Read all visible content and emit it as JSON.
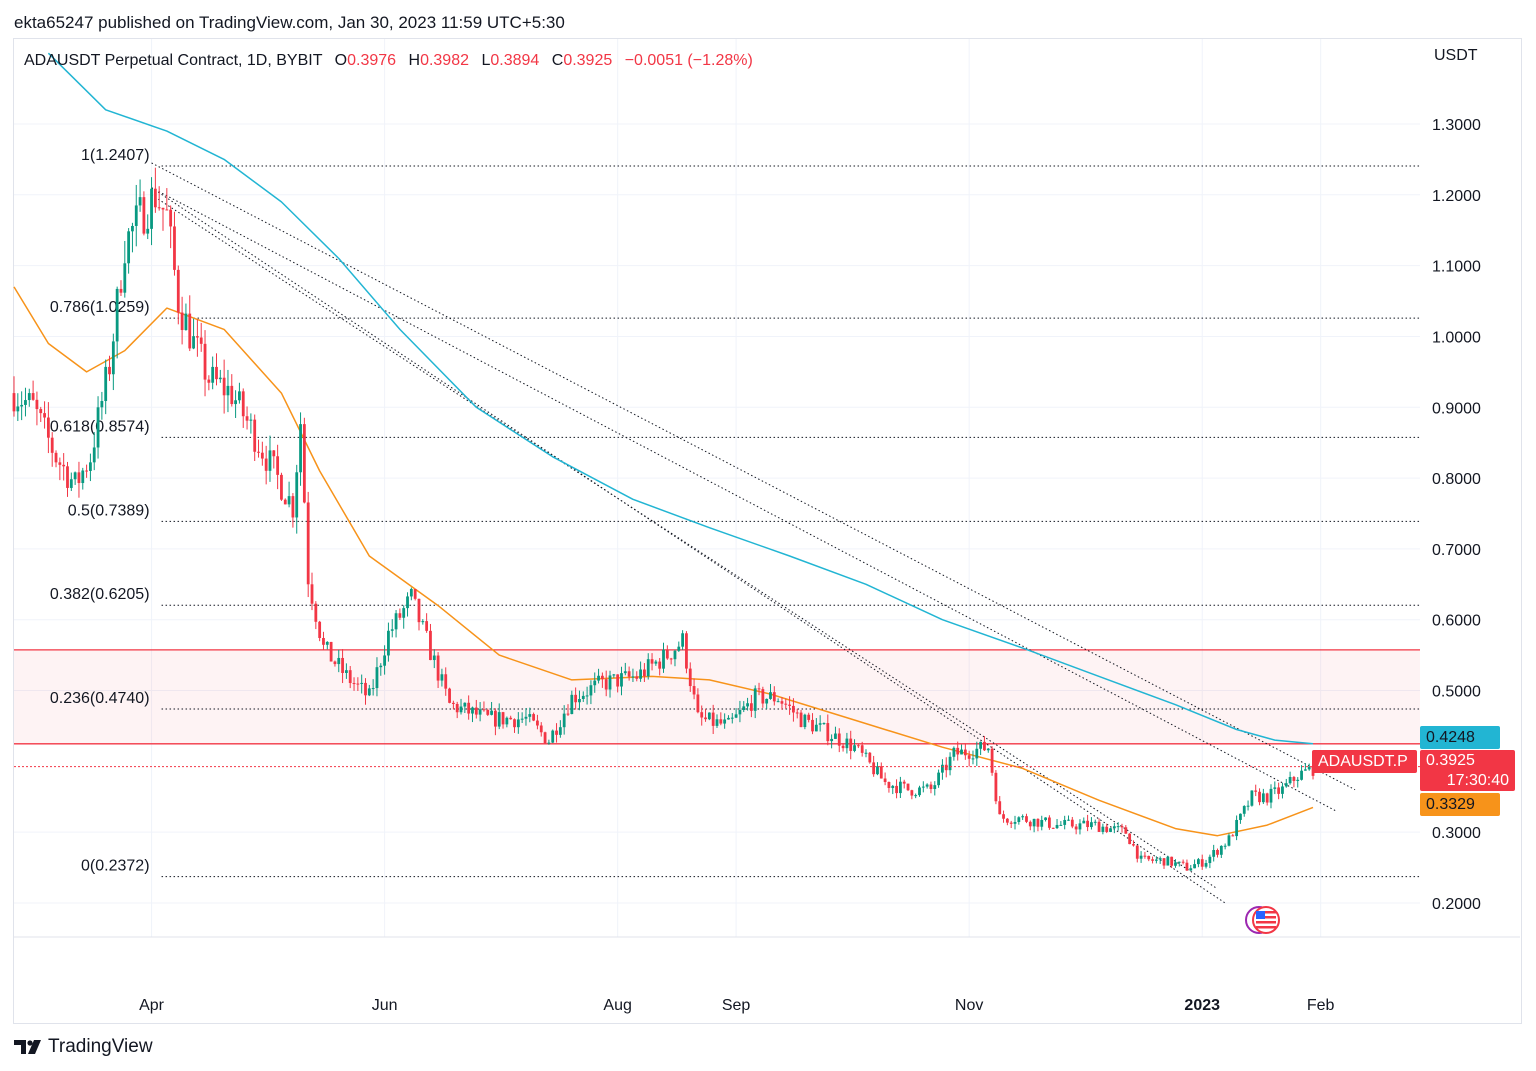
{
  "publisher": "ekta65247 published on TradingView.com, Jan 30, 2023 11:59 UTC+5:30",
  "legend": {
    "symbol": "ADAUSDT Perpetual Contract, 1D, BYBIT",
    "o_label": "O",
    "o": "0.3976",
    "h_label": "H",
    "h": "0.3982",
    "l_label": "L",
    "l": "0.3894",
    "c_label": "C",
    "c": "0.3925",
    "change": "−0.0051 (−1.28%)"
  },
  "footer": {
    "brand": "TradingView"
  },
  "price_tags": {
    "ma_long": {
      "value": "0.4248",
      "color": "#22b5d3"
    },
    "last": {
      "symbol": "ADAUSDT.P",
      "value": "0.3925",
      "countdown": "17:30:40",
      "color": "#f23645"
    },
    "ma_short": {
      "value": "0.3329",
      "color": "#f7931a"
    }
  },
  "chart_data": {
    "type": "candlestick",
    "unit": "USDT",
    "ylim": [
      0.152,
      1.42
    ],
    "y_ticks": [
      "1.3000",
      "1.2000",
      "1.1000",
      "1.0000",
      "0.9000",
      "0.8000",
      "0.7000",
      "0.6000",
      "0.5000",
      "0.3000",
      "0.2000"
    ],
    "y_tick_values": [
      1.3,
      1.2,
      1.1,
      1.0,
      0.9,
      0.8,
      0.7,
      0.6,
      0.5,
      0.3,
      0.2
    ],
    "x_range": [
      "2022-02-24",
      "2023-02-27"
    ],
    "x_ticks": [
      {
        "label": "Apr",
        "date": "2022-04-01",
        "bold": false
      },
      {
        "label": "Jun",
        "date": "2022-06-01",
        "bold": false
      },
      {
        "label": "Aug",
        "date": "2022-08-01",
        "bold": false
      },
      {
        "label": "Sep",
        "date": "2022-09-01",
        "bold": false
      },
      {
        "label": "Nov",
        "date": "2022-11-01",
        "bold": false
      },
      {
        "label": "2023",
        "date": "2023-01-01",
        "bold": true
      },
      {
        "label": "Feb",
        "date": "2023-02-01",
        "bold": false
      }
    ],
    "up_color": "#089981",
    "down_color": "#f23645",
    "close_path": [
      [
        "2022-02-24",
        0.92
      ],
      [
        "2022-03-01",
        0.9
      ],
      [
        "2022-03-07",
        0.83
      ],
      [
        "2022-03-12",
        0.79
      ],
      [
        "2022-03-16",
        0.83
      ],
      [
        "2022-03-21",
        0.96
      ],
      [
        "2022-03-25",
        1.13
      ],
      [
        "2022-03-29",
        1.17
      ],
      [
        "2022-04-02",
        1.2
      ],
      [
        "2022-04-05",
        1.17
      ],
      [
        "2022-04-08",
        1.05
      ],
      [
        "2022-04-12",
        0.99
      ],
      [
        "2022-04-16",
        0.94
      ],
      [
        "2022-04-22",
        0.92
      ],
      [
        "2022-04-28",
        0.86
      ],
      [
        "2022-05-04",
        0.8
      ],
      [
        "2022-05-08",
        0.76
      ],
      [
        "2022-05-10",
        0.88
      ],
      [
        "2022-05-12",
        0.66
      ],
      [
        "2022-05-16",
        0.56
      ],
      [
        "2022-05-22",
        0.52
      ],
      [
        "2022-05-28",
        0.49
      ],
      [
        "2022-06-02",
        0.58
      ],
      [
        "2022-06-08",
        0.63
      ],
      [
        "2022-06-12",
        0.57
      ],
      [
        "2022-06-18",
        0.48
      ],
      [
        "2022-06-28",
        0.46
      ],
      [
        "2022-07-08",
        0.46
      ],
      [
        "2022-07-14",
        0.43
      ],
      [
        "2022-07-20",
        0.49
      ],
      [
        "2022-07-28",
        0.51
      ],
      [
        "2022-08-06",
        0.52
      ],
      [
        "2022-08-14",
        0.55
      ],
      [
        "2022-08-18",
        0.57
      ],
      [
        "2022-08-22",
        0.46
      ],
      [
        "2022-08-30",
        0.45
      ],
      [
        "2022-09-06",
        0.49
      ],
      [
        "2022-09-12",
        0.49
      ],
      [
        "2022-09-18",
        0.46
      ],
      [
        "2022-09-25",
        0.44
      ],
      [
        "2022-10-02",
        0.42
      ],
      [
        "2022-10-10",
        0.37
      ],
      [
        "2022-10-16",
        0.36
      ],
      [
        "2022-10-22",
        0.36
      ],
      [
        "2022-10-28",
        0.41
      ],
      [
        "2022-11-06",
        0.42
      ],
      [
        "2022-11-09",
        0.32
      ],
      [
        "2022-11-14",
        0.32
      ],
      [
        "2022-11-24",
        0.31
      ],
      [
        "2022-12-04",
        0.31
      ],
      [
        "2022-12-12",
        0.3
      ],
      [
        "2022-12-16",
        0.26
      ],
      [
        "2022-12-22",
        0.26
      ],
      [
        "2022-12-28",
        0.25
      ],
      [
        "2023-01-02",
        0.26
      ],
      [
        "2023-01-08",
        0.29
      ],
      [
        "2023-01-14",
        0.35
      ],
      [
        "2023-01-18",
        0.35
      ],
      [
        "2023-01-22",
        0.36
      ],
      [
        "2023-01-26",
        0.38
      ],
      [
        "2023-01-30",
        0.39
      ]
    ],
    "overlays": [
      {
        "name": "ma-short",
        "color": "#f7931a",
        "points": [
          [
            "2022-02-24",
            1.07
          ],
          [
            "2022-03-05",
            0.99
          ],
          [
            "2022-03-15",
            0.95
          ],
          [
            "2022-03-25",
            0.98
          ],
          [
            "2022-04-05",
            1.04
          ],
          [
            "2022-04-20",
            1.01
          ],
          [
            "2022-05-05",
            0.92
          ],
          [
            "2022-05-15",
            0.81
          ],
          [
            "2022-05-28",
            0.69
          ],
          [
            "2022-06-15",
            0.62
          ],
          [
            "2022-07-01",
            0.55
          ],
          [
            "2022-07-20",
            0.515
          ],
          [
            "2022-08-10",
            0.52
          ],
          [
            "2022-08-25",
            0.515
          ],
          [
            "2022-09-10",
            0.495
          ],
          [
            "2022-10-01",
            0.46
          ],
          [
            "2022-10-25",
            0.42
          ],
          [
            "2022-11-15",
            0.39
          ],
          [
            "2022-12-05",
            0.345
          ],
          [
            "2022-12-25",
            0.305
          ],
          [
            "2023-01-05",
            0.295
          ],
          [
            "2023-01-18",
            0.31
          ],
          [
            "2023-01-30",
            0.335
          ]
        ]
      },
      {
        "name": "ma-long",
        "color": "#22b5d3",
        "points": [
          [
            "2022-03-05",
            1.4
          ],
          [
            "2022-03-20",
            1.32
          ],
          [
            "2022-04-05",
            1.29
          ],
          [
            "2022-04-20",
            1.25
          ],
          [
            "2022-05-05",
            1.19
          ],
          [
            "2022-05-20",
            1.11
          ],
          [
            "2022-06-05",
            1.01
          ],
          [
            "2022-06-25",
            0.9
          ],
          [
            "2022-07-15",
            0.83
          ],
          [
            "2022-08-05",
            0.77
          ],
          [
            "2022-08-25",
            0.73
          ],
          [
            "2022-09-15",
            0.69
          ],
          [
            "2022-10-05",
            0.65
          ],
          [
            "2022-10-25",
            0.6
          ],
          [
            "2022-11-15",
            0.56
          ],
          [
            "2022-12-05",
            0.52
          ],
          [
            "2022-12-25",
            0.48
          ],
          [
            "2023-01-10",
            0.445
          ],
          [
            "2023-01-20",
            0.43
          ],
          [
            "2023-01-30",
            0.425
          ]
        ]
      }
    ],
    "zone": {
      "from": 0.4248,
      "to": 0.5574,
      "color": "#f23645"
    },
    "last_price": 0.3925,
    "fib_levels": [
      {
        "ratio": "1",
        "value": 1.2407,
        "label": "1(1.2407)"
      },
      {
        "ratio": "0.786",
        "value": 1.0259,
        "label": "0.786(1.0259)"
      },
      {
        "ratio": "0.618",
        "value": 0.8574,
        "label": "0.618(0.8574)"
      },
      {
        "ratio": "0.5",
        "value": 0.7389,
        "label": "0.5(0.7389)"
      },
      {
        "ratio": "0.382",
        "value": 0.6205,
        "label": "0.382(0.6205)"
      },
      {
        "ratio": "0.236",
        "value": 0.474,
        "label": "0.236(0.4740)"
      },
      {
        "ratio": "0",
        "value": 0.2372,
        "label": "0(0.2372)"
      }
    ],
    "fib_start_date": "2022-04-01",
    "trendlines": [
      {
        "from": [
          "2022-04-01",
          1.245
        ],
        "to": [
          "2023-02-10",
          0.36
        ]
      },
      {
        "from": [
          "2022-04-01",
          1.21
        ],
        "to": [
          "2023-02-05",
          0.33
        ]
      },
      {
        "from": [
          "2022-04-01",
          1.21
        ],
        "to": [
          "2023-01-07",
          0.2
        ]
      },
      {
        "from": [
          "2022-04-01",
          1.2
        ],
        "to": [
          "2023-01-05",
          0.22
        ]
      }
    ]
  }
}
